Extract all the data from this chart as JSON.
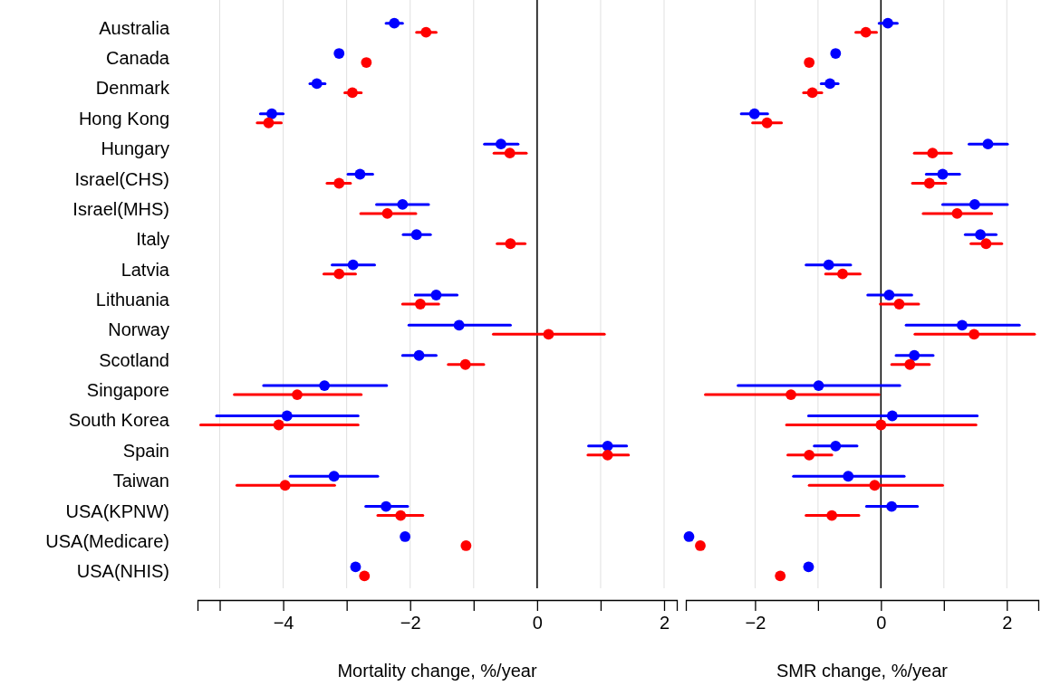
{
  "chart_data": [
    {
      "type": "scatter",
      "orientation": "horizontal",
      "xlabel": "Mortality change, %/year",
      "categories": [
        "Australia",
        "Canada",
        "Denmark",
        "Hong Kong",
        "Hungary",
        "Israel(CHS)",
        "Israel(MHS)",
        "Italy",
        "Latvia",
        "Lithuania",
        "Norway",
        "Scotland",
        "Singapore",
        "South Korea",
        "Spain",
        "Taiwan",
        "USA(KPNW)",
        "USA(Medicare)",
        "USA(NHIS)"
      ],
      "xlim": [
        -5.35,
        2.2
      ],
      "xticks": [
        {
          "value": -5,
          "label": null
        },
        -4,
        {
          "value": -3,
          "label": null
        },
        -2,
        {
          "value": -1,
          "label": null
        },
        0,
        {
          "value": 1,
          "label": null
        },
        2
      ],
      "grid": "x",
      "marker": "circle",
      "ref_lines": [
        {
          "axis": "x",
          "value": 0,
          "color": "#000000"
        }
      ],
      "series": [
        {
          "color": "#0000ff",
          "values": [
            -2.25,
            -3.12,
            -3.47,
            -4.18,
            -0.57,
            -2.79,
            -2.12,
            -1.9,
            -2.9,
            -1.59,
            -1.23,
            -1.86,
            -3.35,
            -3.94,
            1.11,
            -3.2,
            -2.38,
            -2.08,
            -2.86
          ],
          "errors": [
            [
              -2.38,
              -2.12
            ],
            null,
            [
              -3.58,
              -3.34
            ],
            [
              -4.36,
              -4.0
            ],
            [
              -0.83,
              -0.3
            ],
            [
              -2.98,
              -2.59
            ],
            [
              -2.53,
              -1.71
            ],
            [
              -2.11,
              -1.68
            ],
            [
              -3.23,
              -2.56
            ],
            [
              -1.92,
              -1.26
            ],
            [
              -2.02,
              -0.42
            ],
            [
              -2.12,
              -1.59
            ],
            [
              -4.31,
              -2.37
            ],
            [
              -5.05,
              -2.82
            ],
            [
              0.81,
              1.41
            ],
            [
              -3.89,
              -2.51
            ],
            [
              -2.7,
              -2.04
            ],
            null,
            null
          ]
        },
        {
          "color": "#ff0000",
          "values": [
            -1.75,
            -2.69,
            -2.91,
            -4.23,
            -0.43,
            -3.12,
            -2.36,
            -0.42,
            -3.12,
            -1.84,
            0.18,
            -1.13,
            -3.78,
            -4.07,
            1.11,
            -3.97,
            -2.15,
            -1.12,
            -2.72
          ],
          "errors": [
            [
              -1.9,
              -1.59
            ],
            null,
            [
              -3.03,
              -2.77
            ],
            [
              -4.41,
              -4.03
            ],
            [
              -0.68,
              -0.17
            ],
            [
              -3.31,
              -2.94
            ],
            [
              -2.78,
              -1.91
            ],
            [
              -0.63,
              -0.19
            ],
            [
              -3.36,
              -2.86
            ],
            [
              -2.12,
              -1.55
            ],
            [
              -0.69,
              1.06
            ],
            [
              -1.4,
              -0.84
            ],
            [
              -4.77,
              -2.77
            ],
            [
              -5.3,
              -2.82
            ],
            [
              0.8,
              1.44
            ],
            [
              -4.73,
              -3.19
            ],
            [
              -2.51,
              -1.8
            ],
            null,
            null
          ]
        }
      ]
    },
    {
      "type": "scatter",
      "orientation": "horizontal",
      "xlabel": "SMR change, %/year",
      "tick_labels": "x",
      "categories": [
        null,
        null,
        null,
        null,
        null,
        null,
        null,
        null,
        null,
        null,
        null,
        null,
        null,
        null,
        null,
        null,
        null,
        null,
        null
      ],
      "xlim": [
        -3.1,
        2.5
      ],
      "xticks": [
        -2,
        {
          "value": -1,
          "label": null
        },
        0,
        {
          "value": 1,
          "label": null
        },
        2
      ],
      "grid": "x",
      "marker": "circle",
      "ref_lines": [
        {
          "axis": "x",
          "value": 0,
          "color": "#000000"
        }
      ],
      "series": [
        {
          "color": "#0000ff",
          "values": [
            0.11,
            -0.72,
            -0.81,
            -2.01,
            1.7,
            0.98,
            1.49,
            1.58,
            -0.83,
            0.13,
            1.29,
            0.53,
            -0.99,
            0.18,
            -0.72,
            -0.52,
            0.17,
            -3.05,
            -1.15
          ],
          "errors": [
            [
              -0.03,
              0.26
            ],
            null,
            [
              -0.95,
              -0.68
            ],
            [
              -2.22,
              -1.8
            ],
            [
              1.4,
              2.01
            ],
            [
              0.72,
              1.25
            ],
            [
              0.98,
              2.01
            ],
            [
              1.34,
              1.83
            ],
            [
              -1.19,
              -0.48
            ],
            [
              -0.21,
              0.49
            ],
            [
              0.4,
              2.2
            ],
            [
              0.24,
              0.83
            ],
            [
              -2.27,
              0.3
            ],
            [
              -1.15,
              1.53
            ],
            [
              -1.06,
              -0.38
            ],
            [
              -1.39,
              0.37
            ],
            [
              -0.23,
              0.58
            ],
            null,
            null
          ]
        },
        {
          "color": "#ff0000",
          "values": [
            -0.24,
            -1.14,
            -1.09,
            -1.81,
            0.82,
            0.77,
            1.21,
            1.67,
            -0.61,
            0.29,
            1.48,
            0.46,
            -1.43,
            0.0,
            -1.14,
            -0.1,
            -0.78,
            -2.87,
            -1.6
          ],
          "errors": [
            [
              -0.4,
              -0.07
            ],
            null,
            [
              -1.23,
              -0.94
            ],
            [
              -2.04,
              -1.58
            ],
            [
              0.53,
              1.12
            ],
            [
              0.5,
              1.03
            ],
            [
              0.67,
              1.76
            ],
            [
              1.43,
              1.92
            ],
            [
              -0.88,
              -0.33
            ],
            [
              -0.01,
              0.6
            ],
            [
              0.54,
              2.44
            ],
            [
              0.17,
              0.77
            ],
            [
              -2.79,
              -0.03
            ],
            [
              -1.5,
              1.51
            ],
            [
              -1.48,
              -0.78
            ],
            [
              -1.14,
              0.98
            ],
            [
              -1.19,
              -0.35
            ],
            null,
            null
          ]
        }
      ]
    }
  ]
}
